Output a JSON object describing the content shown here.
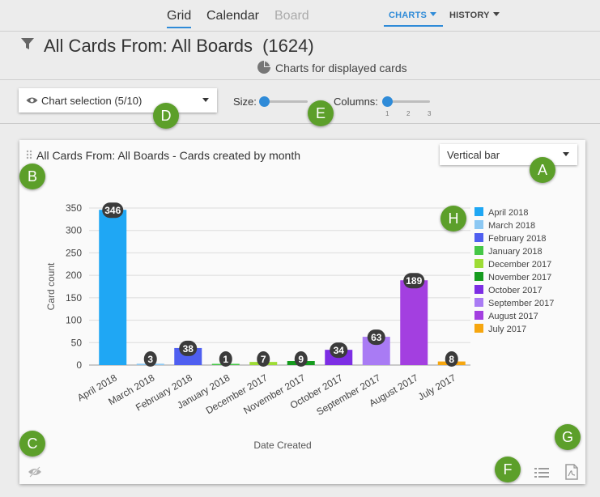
{
  "tabs": [
    {
      "label": "Grid"
    },
    {
      "label": "Calendar"
    },
    {
      "label": "Board"
    }
  ],
  "menus": {
    "charts": "CHARTS",
    "history": "HISTORY"
  },
  "header": {
    "title": "All Cards From: All Boards",
    "count": "(1624)",
    "subtitle": "Charts for displayed cards"
  },
  "controls": {
    "chart_selection": "Chart selection (5/10)",
    "size_label": "Size:",
    "columns_label": "Columns:",
    "column_ticks": [
      "1",
      "2",
      "3"
    ]
  },
  "card": {
    "chart_type_value": "Vertical bar"
  },
  "badges": {
    "A": "A",
    "B": "B",
    "C": "C",
    "D": "D",
    "E": "E",
    "F": "F",
    "G": "G",
    "H": "H"
  },
  "icons": [
    "filter-icon",
    "pie-chart-icon",
    "eye-icon",
    "drag-handle-icon",
    "hidden-eye-icon",
    "list-icon",
    "pdf-icon"
  ],
  "colors": {
    "accent": "#2f8bd8",
    "badge": "#5c9f2a"
  },
  "chart_data": {
    "type": "bar",
    "title": "All Cards From: All Boards - Cards created by month",
    "xlabel": "Date Created",
    "ylabel": "Card count",
    "ylim": [
      0,
      350
    ],
    "yticks": [
      0,
      50,
      100,
      150,
      200,
      250,
      300,
      350
    ],
    "grid": true,
    "legend": "right",
    "categories": [
      "April 2018",
      "March 2018",
      "February 2018",
      "January 2018",
      "December 2017",
      "November 2017",
      "October 2017",
      "September 2017",
      "August 2017",
      "July 2017"
    ],
    "values": [
      346,
      3,
      38,
      1,
      7,
      9,
      34,
      63,
      189,
      8
    ],
    "colors": [
      "#1fa7f4",
      "#8cc8f3",
      "#4f5ff0",
      "#45c747",
      "#9edc35",
      "#159b1e",
      "#7d2ee4",
      "#a97bf4",
      "#a33fe0",
      "#f6a60f"
    ]
  }
}
